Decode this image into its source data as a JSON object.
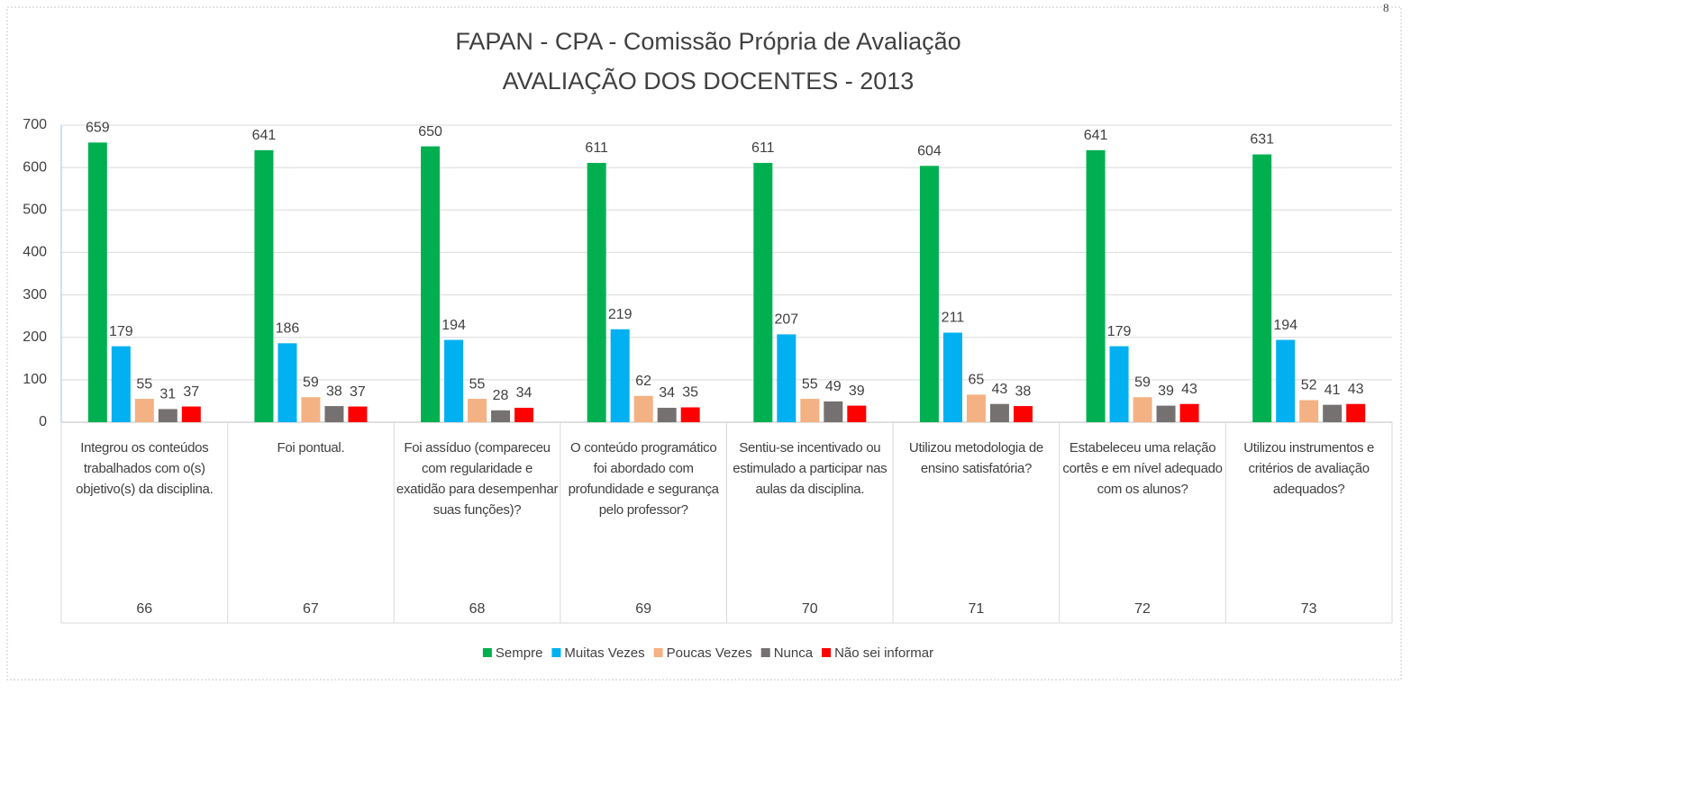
{
  "page_label": "8",
  "chart_data": {
    "type": "bar",
    "title": "FAPAN - CPA - Comissão Própria de Avaliação",
    "subtitle": "AVALIAÇÃO DOS DOCENTES - 2013",
    "categories": [
      "Integrou os conteúdos trabalhados com o(s) objetivo(s) da disciplina.",
      "Foi pontual.",
      "Foi assíduo (compareceu com regularidade e exatidão para desempenhar suas funções)?",
      "O conteúdo programático foi abordado com profundidade e segurança pelo professor?",
      "Sentiu-se incentivado ou estimulado a participar nas aulas da disciplina.",
      "Utilizou metodologia de ensino satisfatória?",
      "Estabeleceu uma relação cortês e em nível adequado com os alunos?",
      "Utilizou instrumentos e critérios de avaliação adequados?"
    ],
    "category_codes": [
      "66",
      "67",
      "68",
      "69",
      "70",
      "71",
      "72",
      "73"
    ],
    "series": [
      {
        "name": "Sempre",
        "color": "#00b050",
        "values": [
          659,
          641,
          650,
          611,
          611,
          604,
          641,
          631
        ]
      },
      {
        "name": "Muitas Vezes",
        "color": "#00b0f0",
        "values": [
          179,
          186,
          194,
          219,
          207,
          211,
          179,
          194
        ]
      },
      {
        "name": "Poucas Vezes",
        "color": "#f4b183",
        "values": [
          55,
          59,
          55,
          62,
          55,
          65,
          59,
          52
        ]
      },
      {
        "name": "Nunca",
        "color": "#767171",
        "values": [
          31,
          38,
          28,
          34,
          49,
          43,
          39,
          41
        ]
      },
      {
        "name": "Não sei informar",
        "color": "#ff0000",
        "values": [
          37,
          37,
          34,
          35,
          39,
          38,
          43,
          43
        ]
      }
    ],
    "ylim": [
      0,
      700
    ],
    "yticks": [
      0,
      100,
      200,
      300,
      400,
      500,
      600,
      700
    ],
    "grid": true,
    "legend": "bottom"
  }
}
